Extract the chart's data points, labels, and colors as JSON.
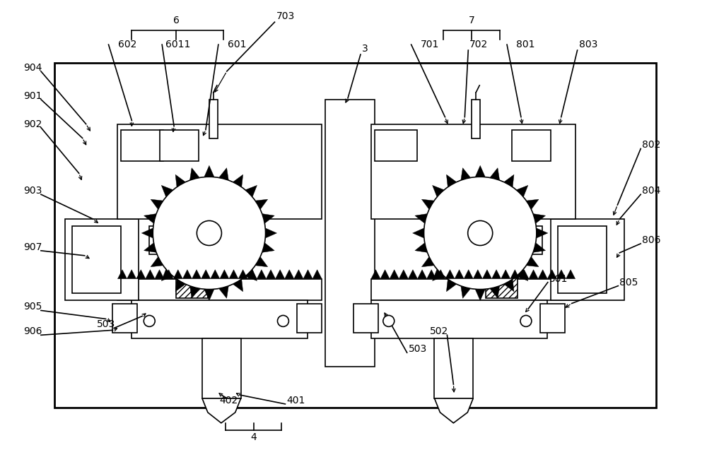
{
  "bg_color": "#ffffff",
  "line_color": "#000000",
  "fig_width": 10.0,
  "fig_height": 6.37
}
